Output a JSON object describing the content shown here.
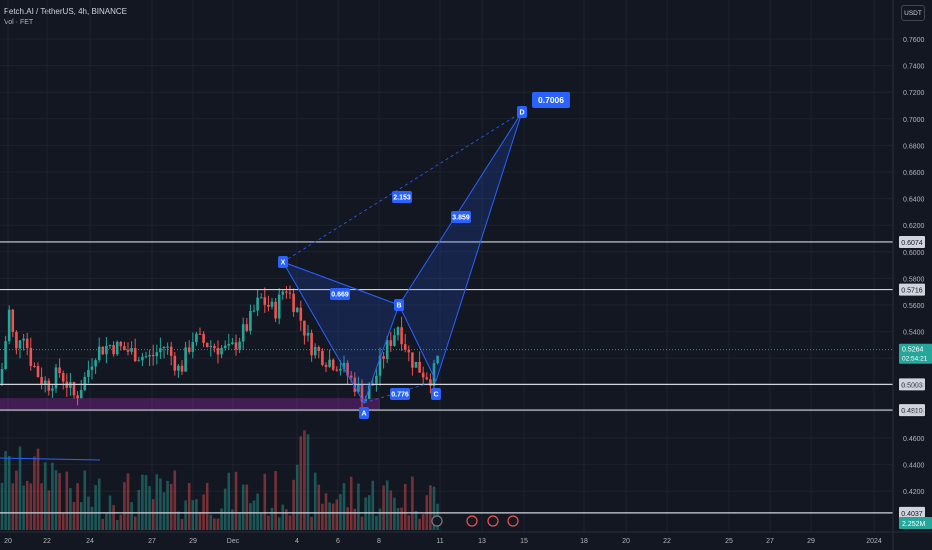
{
  "header": {
    "symbol_line": "Fetch.AI / TetherUS, 4h, BINANCE",
    "volume_line": "Vol · FET"
  },
  "currency_button": "USDT",
  "colors": {
    "background": "#131722",
    "up": "#26a69a",
    "down": "#ef5350",
    "pattern": "#2962ff",
    "support_zone": "#9c27b0"
  },
  "chart_data": {
    "type": "candlestick",
    "ylim": [
      0.38,
      0.78
    ],
    "y_ticks": [
      "0.7600",
      "0.7400",
      "0.7200",
      "0.7000",
      "0.6800",
      "0.6600",
      "0.6400",
      "0.6200",
      "0.6000",
      "0.5800",
      "0.5600",
      "0.5400",
      "0.5200",
      "0.5000",
      "0.4800",
      "0.4600",
      "0.4400",
      "0.4200"
    ],
    "x_ticks": [
      "20",
      "22",
      "24",
      "27",
      "29",
      "Dec",
      "4",
      "6",
      "8",
      "11",
      "13",
      "15",
      "18",
      "20",
      "22",
      "25",
      "27",
      "29",
      "2024"
    ],
    "price_lines": [
      {
        "label": "0.6074",
        "value": 0.6074
      },
      {
        "label": "0.5716",
        "value": 0.5716
      },
      {
        "label": "0.5003",
        "value": 0.5003
      },
      {
        "label": "0.4810",
        "value": 0.481
      },
      {
        "label": "0.4037",
        "value": 0.4037
      }
    ],
    "last_price": {
      "label": "0.5264",
      "countdown": "02:54:21",
      "value": 0.5264
    },
    "volume_label": "2.252M",
    "support_zone": {
      "from": 0.481,
      "to": 0.49
    },
    "harmonic_pattern": {
      "points": [
        {
          "name": "X",
          "price": 0.585
        },
        {
          "name": "A",
          "price": 0.481
        },
        {
          "name": "B",
          "price": 0.551
        },
        {
          "name": "C",
          "price": 0.505
        },
        {
          "name": "D",
          "price": 0.7006
        }
      ],
      "ratios": [
        "0.669",
        "0.776",
        "3.859",
        "2.153"
      ],
      "target_label": "0.7006"
    },
    "event_markers": [
      "lightning",
      "us-flag",
      "us-flag",
      "us-flag"
    ]
  }
}
